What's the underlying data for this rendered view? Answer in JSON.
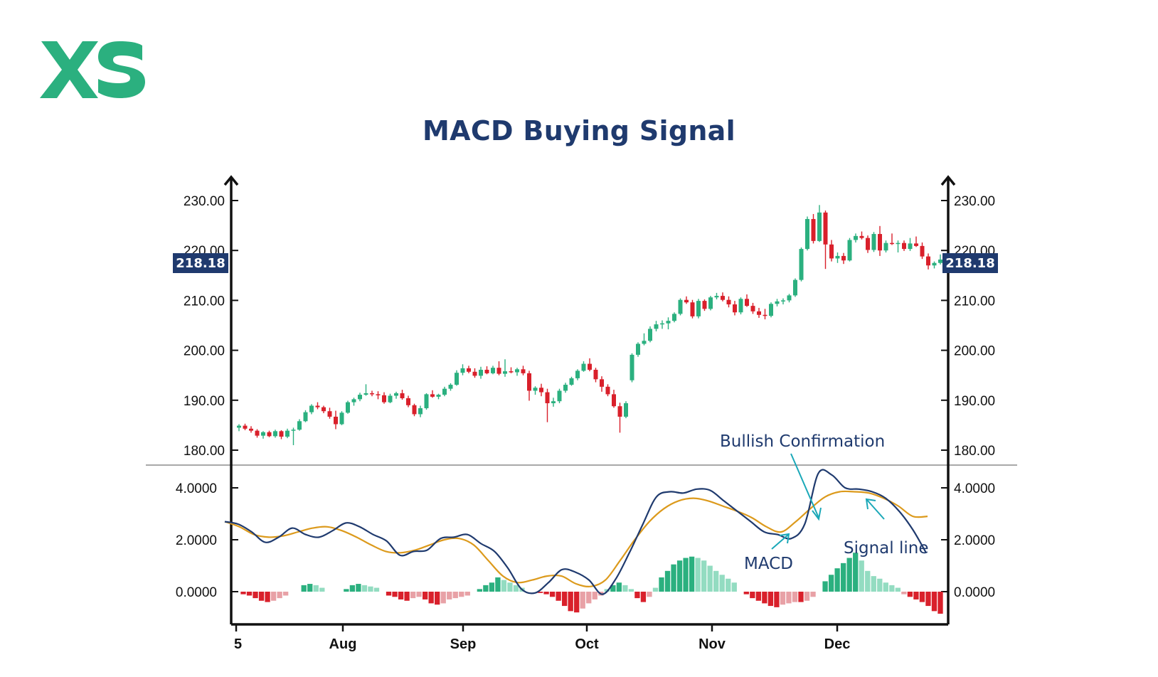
{
  "brand": {
    "logo_text": "XS",
    "color": "#2bb07f"
  },
  "colors": {
    "up": "#2bb07f",
    "down": "#d9202b",
    "up_light": "#93dcc1",
    "down_light": "#e8a1a6",
    "macd": "#1f3a6e",
    "signal": "#dc9a1c",
    "annotation_arrow": "#1aa8b8",
    "axis": "#111111"
  },
  "chart_data": [
    {
      "type": "candlestick",
      "title": "MACD Buying Signal",
      "x_ticks": [
        "5",
        "Aug",
        "Sep",
        "Oct",
        "Nov",
        "Dec"
      ],
      "y_ticks": [
        "180.00",
        "190.00",
        "200.00",
        "210.00",
        "220.00",
        "230.00"
      ],
      "ylim": [
        177.5,
        233
      ],
      "last_price_label": "218.18",
      "ohlc": [
        [
          184.5,
          185.2,
          183.8,
          184.9
        ],
        [
          184.9,
          185.3,
          184.0,
          184.3
        ],
        [
          184.3,
          184.8,
          183.5,
          183.9
        ],
        [
          183.9,
          184.2,
          182.5,
          182.9
        ],
        [
          182.9,
          183.8,
          182.3,
          183.6
        ],
        [
          183.6,
          183.9,
          182.6,
          182.8
        ],
        [
          182.8,
          184.1,
          182.5,
          183.8
        ],
        [
          183.8,
          184.0,
          182.2,
          182.7
        ],
        [
          182.7,
          184.3,
          182.4,
          183.9
        ],
        [
          183.9,
          184.5,
          181.0,
          184.1
        ],
        [
          184.1,
          186.2,
          183.9,
          185.8
        ],
        [
          185.8,
          188.0,
          185.6,
          187.6
        ],
        [
          187.6,
          189.2,
          187.2,
          188.9
        ],
        [
          188.9,
          189.6,
          188.2,
          188.6
        ],
        [
          188.6,
          188.9,
          187.4,
          187.8
        ],
        [
          187.8,
          188.5,
          186.3,
          186.7
        ],
        [
          186.7,
          187.9,
          184.2,
          185.2
        ],
        [
          185.2,
          187.8,
          185.0,
          187.5
        ],
        [
          187.5,
          189.9,
          187.3,
          189.6
        ],
        [
          189.6,
          190.5,
          188.9,
          190.2
        ],
        [
          190.2,
          191.5,
          189.8,
          191.1
        ],
        [
          191.1,
          193.2,
          190.9,
          191.4
        ],
        [
          191.4,
          191.9,
          190.8,
          191.2
        ],
        [
          191.2,
          191.8,
          190.2,
          191.0
        ],
        [
          191.0,
          191.6,
          189.3,
          189.6
        ],
        [
          189.6,
          191.3,
          189.4,
          190.9
        ],
        [
          190.9,
          191.7,
          190.3,
          191.4
        ],
        [
          191.4,
          192.1,
          190.1,
          190.4
        ],
        [
          190.4,
          190.9,
          188.6,
          189.0
        ],
        [
          189.0,
          189.3,
          186.8,
          187.2
        ],
        [
          187.2,
          188.9,
          186.6,
          188.4
        ],
        [
          188.4,
          191.4,
          188.1,
          191.2
        ],
        [
          191.2,
          192.0,
          190.5,
          190.7
        ],
        [
          190.7,
          191.3,
          190.2,
          191.1
        ],
        [
          191.1,
          192.7,
          190.8,
          192.3
        ],
        [
          192.3,
          193.4,
          191.9,
          193.1
        ],
        [
          193.1,
          196.0,
          192.9,
          195.5
        ],
        [
          195.5,
          197.2,
          195.0,
          196.4
        ],
        [
          196.4,
          196.9,
          195.4,
          195.7
        ],
        [
          195.7,
          196.4,
          194.5,
          194.9
        ],
        [
          194.9,
          196.7,
          194.3,
          196.1
        ],
        [
          196.1,
          196.8,
          195.2,
          195.4
        ],
        [
          195.4,
          196.9,
          195.2,
          196.5
        ],
        [
          196.5,
          197.8,
          195.0,
          195.3
        ],
        [
          195.3,
          198.2,
          194.7,
          195.8
        ],
        [
          195.8,
          196.6,
          195.4,
          195.6
        ],
        [
          195.6,
          196.5,
          194.9,
          196.2
        ],
        [
          196.2,
          196.9,
          195.0,
          195.4
        ],
        [
          195.4,
          195.9,
          189.9,
          191.9
        ],
        [
          191.9,
          192.8,
          191.1,
          192.5
        ],
        [
          192.5,
          193.3,
          190.8,
          191.6
        ],
        [
          191.6,
          192.3,
          185.6,
          189.4
        ],
        [
          189.4,
          190.5,
          188.7,
          189.8
        ],
        [
          189.8,
          192.3,
          189.4,
          191.9
        ],
        [
          191.9,
          193.5,
          191.5,
          193.1
        ],
        [
          193.1,
          194.7,
          192.9,
          194.4
        ],
        [
          194.4,
          196.2,
          194.0,
          195.9
        ],
        [
          195.9,
          197.8,
          195.7,
          197.3
        ],
        [
          197.3,
          198.4,
          195.8,
          196.1
        ],
        [
          196.1,
          196.5,
          193.6,
          194.2
        ],
        [
          194.2,
          194.8,
          191.7,
          192.7
        ],
        [
          192.7,
          193.2,
          190.8,
          191.2
        ],
        [
          191.2,
          192.1,
          188.5,
          188.8
        ],
        [
          188.8,
          189.5,
          183.5,
          186.7
        ],
        [
          186.7,
          189.8,
          186.4,
          189.4
        ],
        [
          194.0,
          199.4,
          193.6,
          199.1
        ],
        [
          199.1,
          201.6,
          198.7,
          201.3
        ],
        [
          201.3,
          203.4,
          201.0,
          201.9
        ],
        [
          201.9,
          204.8,
          201.6,
          204.3
        ],
        [
          204.3,
          205.9,
          203.8,
          205.2
        ],
        [
          205.2,
          206.0,
          204.3,
          205.4
        ],
        [
          205.4,
          206.6,
          204.2,
          205.9
        ],
        [
          205.9,
          207.6,
          205.6,
          207.3
        ],
        [
          207.3,
          210.4,
          207.0,
          210.1
        ],
        [
          210.1,
          210.8,
          209.3,
          209.6
        ],
        [
          209.6,
          210.1,
          206.4,
          206.8
        ],
        [
          206.8,
          210.3,
          206.4,
          209.9
        ],
        [
          209.9,
          210.2,
          207.9,
          208.3
        ],
        [
          208.3,
          210.9,
          208.0,
          210.6
        ],
        [
          210.6,
          211.5,
          210.2,
          210.9
        ],
        [
          210.9,
          211.6,
          209.8,
          210.1
        ],
        [
          210.1,
          210.8,
          208.6,
          209.2
        ],
        [
          209.2,
          209.9,
          207.0,
          207.6
        ],
        [
          207.6,
          210.6,
          207.2,
          210.3
        ],
        [
          210.3,
          211.2,
          208.7,
          208.9
        ],
        [
          208.9,
          209.5,
          207.3,
          207.8
        ],
        [
          207.8,
          208.5,
          206.5,
          207.1
        ],
        [
          207.1,
          208.3,
          206.2,
          206.9
        ],
        [
          206.9,
          209.6,
          206.6,
          209.3
        ],
        [
          209.3,
          210.3,
          208.8,
          209.8
        ],
        [
          209.8,
          210.4,
          209.2,
          210.0
        ],
        [
          210.0,
          211.3,
          209.6,
          211.0
        ],
        [
          211.0,
          214.4,
          210.7,
          214.1
        ],
        [
          214.1,
          220.6,
          213.8,
          220.3
        ],
        [
          220.3,
          226.8,
          220.0,
          226.3
        ],
        [
          226.3,
          227.3,
          221.4,
          221.9
        ],
        [
          221.9,
          229.1,
          221.7,
          227.6
        ],
        [
          227.6,
          228.0,
          216.3,
          221.2
        ],
        [
          221.2,
          222.1,
          217.8,
          218.4
        ],
        [
          218.4,
          219.6,
          217.5,
          218.9
        ],
        [
          218.9,
          219.5,
          217.3,
          218.0
        ],
        [
          218.0,
          222.5,
          217.8,
          222.1
        ],
        [
          222.1,
          223.4,
          221.6,
          222.9
        ],
        [
          222.9,
          223.8,
          222.2,
          222.5
        ],
        [
          222.5,
          223.0,
          219.5,
          220.1
        ],
        [
          220.1,
          223.7,
          219.7,
          223.3
        ],
        [
          223.3,
          224.9,
          218.9,
          220.0
        ],
        [
          220.0,
          222.0,
          219.6,
          221.5
        ],
        [
          221.5,
          223.4,
          221.1,
          221.3
        ],
        [
          221.3,
          222.0,
          219.6,
          221.5
        ],
        [
          221.5,
          222.0,
          219.9,
          220.3
        ],
        [
          220.3,
          222.5,
          219.9,
          221.4
        ],
        [
          221.4,
          222.8,
          220.7,
          220.9
        ],
        [
          220.9,
          221.6,
          218.3,
          218.8
        ],
        [
          218.8,
          219.4,
          216.2,
          217.0
        ],
        [
          217.0,
          217.8,
          216.4,
          217.5
        ],
        [
          217.5,
          219.2,
          217.2,
          218.18
        ]
      ]
    },
    {
      "type": "macd",
      "y_ticks": [
        "0.0000",
        "2.0000",
        "4.0000"
      ],
      "ylim": [
        -1.2,
        4.9
      ],
      "series": [
        {
          "name": "MACD",
          "kind": "line",
          "x": [
            0,
            2,
            4,
            6,
            8,
            10,
            12,
            14,
            16,
            18,
            20,
            22,
            24,
            26,
            28,
            30,
            32,
            34,
            36,
            38,
            40,
            42,
            44,
            46,
            48,
            50,
            52,
            54,
            56,
            58,
            60,
            62,
            64,
            66,
            68,
            70,
            72,
            74,
            76,
            78,
            80,
            82,
            84,
            86,
            88,
            90,
            92,
            94,
            96,
            98,
            100,
            102,
            104,
            106,
            108,
            110,
            112,
            115
          ],
          "y": [
            2.7,
            2.6,
            2.3,
            1.9,
            2.1,
            2.45,
            2.2,
            2.1,
            2.35,
            2.65,
            2.5,
            2.2,
            1.95,
            1.4,
            1.55,
            1.6,
            2.05,
            2.1,
            2.2,
            1.85,
            1.55,
            0.9,
            0.1,
            -0.05,
            0.35,
            0.85,
            0.75,
            0.45,
            -0.1,
            0.5,
            1.5,
            2.6,
            3.65,
            3.85,
            3.8,
            3.95,
            3.9,
            3.5,
            3.1,
            2.7,
            2.3,
            2.2,
            2.05,
            2.6,
            4.55,
            4.5,
            4.0,
            3.95,
            3.85,
            3.6,
            3.1,
            2.4,
            1.5,
            1.5,
            1.5,
            1.5,
            1.5,
            1.5
          ]
        },
        {
          "name": "Signal line",
          "kind": "line",
          "x": [
            0,
            2,
            4,
            6,
            8,
            10,
            12,
            14,
            16,
            18,
            20,
            22,
            24,
            26,
            28,
            30,
            32,
            34,
            36,
            38,
            40,
            42,
            44,
            46,
            48,
            50,
            52,
            54,
            56,
            58,
            60,
            62,
            64,
            66,
            68,
            70,
            72,
            74,
            76,
            78,
            80,
            82,
            84,
            86,
            88,
            90,
            92,
            94,
            96,
            98,
            100,
            102,
            104,
            106,
            108,
            110,
            112,
            115
          ],
          "y": [
            2.7,
            2.5,
            2.2,
            2.1,
            2.15,
            2.3,
            2.45,
            2.5,
            2.35,
            2.1,
            1.8,
            1.55,
            1.5,
            1.6,
            1.8,
            2.0,
            2.05,
            1.8,
            1.2,
            0.6,
            0.35,
            0.45,
            0.6,
            0.6,
            0.3,
            0.2,
            0.45,
            1.2,
            2.0,
            2.7,
            3.2,
            3.5,
            3.6,
            3.5,
            3.3,
            3.1,
            2.85,
            2.5,
            2.3,
            2.7,
            3.2,
            3.65,
            3.85,
            3.85,
            3.8,
            3.6,
            3.3,
            2.9,
            2.9,
            2.9,
            2.9,
            2.9,
            2.9,
            2.9,
            2.9,
            2.9,
            2.9,
            2.9
          ]
        },
        {
          "name": "Histogram",
          "kind": "bar",
          "x_start": 2,
          "values": [
            -0.1,
            -0.15,
            -0.25,
            -0.35,
            -0.4,
            -0.35,
            -0.25,
            -0.15,
            0,
            0,
            0.25,
            0.3,
            0.25,
            0.15,
            0,
            0,
            0,
            0.1,
            0.25,
            0.3,
            0.25,
            0.2,
            0.15,
            0,
            -0.15,
            -0.2,
            -0.3,
            -0.35,
            -0.25,
            -0.2,
            -0.3,
            -0.45,
            -0.5,
            -0.45,
            -0.3,
            -0.25,
            -0.2,
            -0.15,
            0,
            0.1,
            0.25,
            0.35,
            0.55,
            0.45,
            0.35,
            0.25,
            0.15,
            0,
            0,
            -0.05,
            -0.1,
            -0.2,
            -0.35,
            -0.55,
            -0.75,
            -0.8,
            -0.65,
            -0.45,
            -0.3,
            -0.15,
            0.1,
            0.25,
            0.35,
            0.25,
            0.1,
            -0.25,
            -0.4,
            -0.2,
            0.15,
            0.55,
            0.8,
            1.05,
            1.2,
            1.3,
            1.35,
            1.3,
            1.2,
            1.0,
            0.8,
            0.65,
            0.5,
            0.35,
            0,
            -0.1,
            -0.25,
            -0.35,
            -0.45,
            -0.55,
            -0.6,
            -0.5,
            -0.45,
            -0.4,
            -0.4,
            -0.35,
            -0.2,
            0,
            0.4,
            0.65,
            0.9,
            1.1,
            1.3,
            1.5,
            1.2,
            0.8,
            0.6,
            0.5,
            0.35,
            0.25,
            0.15,
            -0.1,
            -0.2,
            -0.3,
            -0.4,
            -0.55,
            -0.75,
            -0.85
          ]
        }
      ]
    }
  ],
  "annotations": {
    "bullish": "Bullish Confirmation",
    "macd": "MACD",
    "signal": "Signal line"
  }
}
